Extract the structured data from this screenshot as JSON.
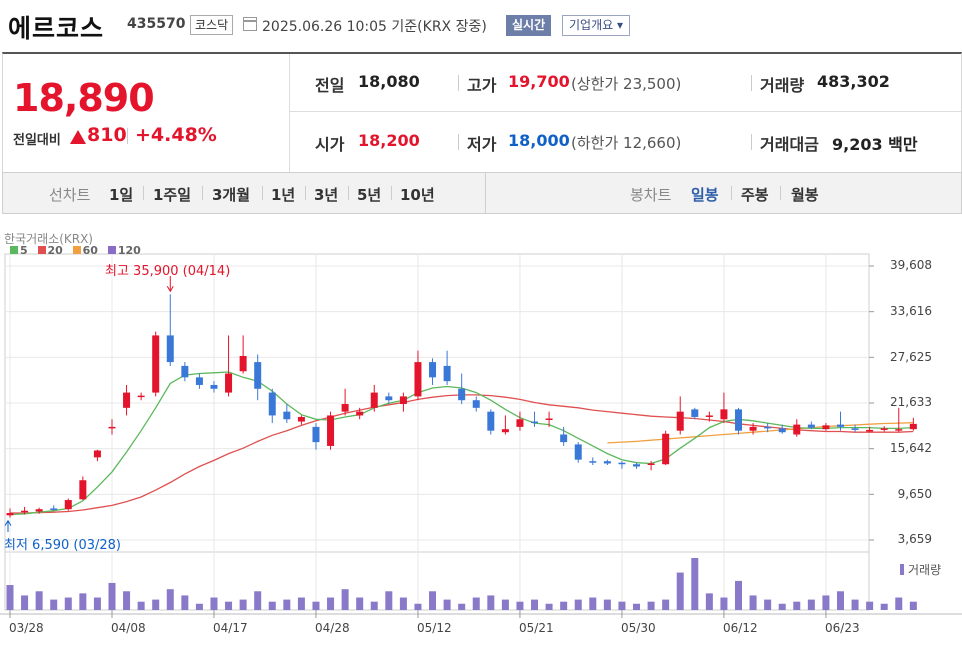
{
  "header": {
    "company_name": "에르코스",
    "ticker": "435570",
    "market": "코스닥",
    "datetime": "2025.06.26 10:05",
    "basis": "기준(KRX 장중)",
    "realtime_button": "실시간",
    "company_overview_button": "기업개요 ▾"
  },
  "quote": {
    "current_price": "18,890",
    "change_label": "전일대비",
    "change_value": "810",
    "change_pct": "+4.48%",
    "prev_close_label": "전일",
    "prev_close": "18,080",
    "open_label": "시가",
    "open": "18,200",
    "high_label": "고가",
    "high": "19,700",
    "upper_limit_text": "(상한가 23,500)",
    "low_label": "저가",
    "low": "18,000",
    "lower_limit_text": "(하한가 12,660)",
    "volume_label": "거래량",
    "volume": "483,302",
    "amount_label": "거래대금",
    "amount": "9,203 백만",
    "colors": {
      "up": "#e3142b",
      "down": "#1060c8"
    }
  },
  "period_bar": {
    "line_chart_label": "선차트",
    "line_periods": [
      "1일",
      "1주일",
      "3개월",
      "1년",
      "3년",
      "5년",
      "10년"
    ],
    "candle_chart_label": "봉차트",
    "candle_periods": [
      "일봉",
      "주봉",
      "월봉"
    ],
    "active_candle_period": "일봉"
  },
  "chart_data": {
    "type": "candlestick",
    "source_label": "한국거래소(KRX)",
    "moving_averages": [
      {
        "name": "5",
        "color": "#5cb85c"
      },
      {
        "name": "20",
        "color": "#e05050"
      },
      {
        "name": "60",
        "color": "#f0a040"
      },
      {
        "name": "120",
        "color": "#8a6cc8"
      }
    ],
    "y_ticks": [
      "39,608",
      "33,616",
      "27,625",
      "21,633",
      "15,642",
      "9,650",
      "3,659"
    ],
    "y_tick_values": [
      39608,
      33616,
      27625,
      21633,
      15642,
      9650,
      3659
    ],
    "x_ticks": [
      "03/28",
      "04/08",
      "04/17",
      "04/28",
      "05/12",
      "05/21",
      "05/30",
      "06/12",
      "06/23"
    ],
    "x_tick_indices": [
      0,
      7,
      14,
      21,
      28,
      35,
      42,
      49,
      56
    ],
    "high_annotation": "최고 35,900 (04/14)",
    "low_annotation": "최저 6,590 (03/28)",
    "volume_label": "거래량",
    "candles": [
      {
        "o": 6900,
        "h": 7800,
        "l": 6590,
        "c": 7200
      },
      {
        "o": 7300,
        "h": 8000,
        "l": 7000,
        "c": 7500
      },
      {
        "o": 7400,
        "h": 7900,
        "l": 7100,
        "c": 7700
      },
      {
        "o": 7800,
        "h": 8200,
        "l": 7500,
        "c": 7600
      },
      {
        "o": 7700,
        "h": 9100,
        "l": 7500,
        "c": 8900
      },
      {
        "o": 9000,
        "h": 12000,
        "l": 8900,
        "c": 11500
      },
      {
        "o": 14500,
        "h": 15500,
        "l": 14000,
        "c": 15400
      },
      {
        "o": 18500,
        "h": 19500,
        "l": 17500,
        "c": 18500
      },
      {
        "o": 21000,
        "h": 24000,
        "l": 20000,
        "c": 23000
      },
      {
        "o": 22500,
        "h": 23000,
        "l": 22000,
        "c": 22600
      },
      {
        "o": 23000,
        "h": 31000,
        "l": 22500,
        "c": 30500
      },
      {
        "o": 30500,
        "h": 35900,
        "l": 26500,
        "c": 27000
      },
      {
        "o": 26500,
        "h": 27000,
        "l": 24500,
        "c": 25000
      },
      {
        "o": 25000,
        "h": 25500,
        "l": 23500,
        "c": 24000
      },
      {
        "o": 24000,
        "h": 24500,
        "l": 23000,
        "c": 23500
      },
      {
        "o": 23000,
        "h": 30500,
        "l": 22500,
        "c": 25500
      },
      {
        "o": 25800,
        "h": 30500,
        "l": 25500,
        "c": 27800
      },
      {
        "o": 27000,
        "h": 28000,
        "l": 22000,
        "c": 23500
      },
      {
        "o": 23000,
        "h": 23500,
        "l": 19000,
        "c": 20000
      },
      {
        "o": 20500,
        "h": 21500,
        "l": 19000,
        "c": 19500
      },
      {
        "o": 19200,
        "h": 20000,
        "l": 18800,
        "c": 19800
      },
      {
        "o": 18500,
        "h": 19000,
        "l": 15500,
        "c": 16500
      },
      {
        "o": 16000,
        "h": 20500,
        "l": 15500,
        "c": 20000
      },
      {
        "o": 20500,
        "h": 23500,
        "l": 20000,
        "c": 21500
      },
      {
        "o": 20000,
        "h": 21000,
        "l": 19500,
        "c": 20500
      },
      {
        "o": 21000,
        "h": 24000,
        "l": 20500,
        "c": 23000
      },
      {
        "o": 22500,
        "h": 23000,
        "l": 21500,
        "c": 22000
      },
      {
        "o": 21500,
        "h": 23000,
        "l": 20500,
        "c": 22500
      },
      {
        "o": 22500,
        "h": 28500,
        "l": 22000,
        "c": 27000
      },
      {
        "o": 27000,
        "h": 27500,
        "l": 24000,
        "c": 25000
      },
      {
        "o": 26500,
        "h": 28500,
        "l": 24000,
        "c": 24500
      },
      {
        "o": 23500,
        "h": 25500,
        "l": 21500,
        "c": 22000
      },
      {
        "o": 22000,
        "h": 22500,
        "l": 20500,
        "c": 21000
      },
      {
        "o": 20500,
        "h": 20800,
        "l": 17500,
        "c": 18000
      },
      {
        "o": 17800,
        "h": 20000,
        "l": 17500,
        "c": 18200
      },
      {
        "o": 18500,
        "h": 20500,
        "l": 18000,
        "c": 19500
      },
      {
        "o": 19200,
        "h": 20500,
        "l": 18500,
        "c": 19000
      },
      {
        "o": 19500,
        "h": 20500,
        "l": 18500,
        "c": 19600
      },
      {
        "o": 17500,
        "h": 18500,
        "l": 16000,
        "c": 16500
      },
      {
        "o": 16200,
        "h": 16500,
        "l": 13800,
        "c": 14200
      },
      {
        "o": 14000,
        "h": 14500,
        "l": 13500,
        "c": 13800
      },
      {
        "o": 14000,
        "h": 14200,
        "l": 13500,
        "c": 13700
      },
      {
        "o": 13800,
        "h": 14000,
        "l": 13000,
        "c": 13600
      },
      {
        "o": 13600,
        "h": 13800,
        "l": 13000,
        "c": 13300
      },
      {
        "o": 13500,
        "h": 14000,
        "l": 12800,
        "c": 13700
      },
      {
        "o": 13600,
        "h": 18000,
        "l": 13500,
        "c": 17600
      },
      {
        "o": 18000,
        "h": 22500,
        "l": 17500,
        "c": 20500
      },
      {
        "o": 20800,
        "h": 21000,
        "l": 19500,
        "c": 19800
      },
      {
        "o": 19800,
        "h": 20500,
        "l": 19200,
        "c": 20000
      },
      {
        "o": 19500,
        "h": 23000,
        "l": 19000,
        "c": 20800
      },
      {
        "o": 20800,
        "h": 21000,
        "l": 17500,
        "c": 18000
      },
      {
        "o": 18000,
        "h": 19000,
        "l": 17500,
        "c": 18500
      },
      {
        "o": 18500,
        "h": 19000,
        "l": 17800,
        "c": 18300
      },
      {
        "o": 18300,
        "h": 18800,
        "l": 17600,
        "c": 17800
      },
      {
        "o": 17500,
        "h": 19500,
        "l": 17200,
        "c": 18800
      },
      {
        "o": 18800,
        "h": 19200,
        "l": 18200,
        "c": 18400
      },
      {
        "o": 18200,
        "h": 19000,
        "l": 18000,
        "c": 18700
      },
      {
        "o": 18800,
        "h": 20500,
        "l": 18000,
        "c": 18500
      },
      {
        "o": 18300,
        "h": 18800,
        "l": 17800,
        "c": 18200
      },
      {
        "o": 18000,
        "h": 18500,
        "l": 17800,
        "c": 18100
      },
      {
        "o": 18200,
        "h": 18600,
        "l": 17900,
        "c": 18300
      },
      {
        "o": 18100,
        "h": 21000,
        "l": 17800,
        "c": 18200
      },
      {
        "o": 18200,
        "h": 19700,
        "l": 18000,
        "c": 18890
      }
    ],
    "ma5": [
      7000,
      7100,
      7300,
      7500,
      7800,
      8800,
      10600,
      12600,
      15200,
      18000,
      21000,
      24200,
      25300,
      25500,
      25600,
      25700,
      25000,
      24500,
      23200,
      21500,
      20100,
      19500,
      19400,
      19800,
      20100,
      21000,
      21600,
      22000,
      23000,
      23600,
      23800,
      23600,
      23000,
      22000,
      20800,
      19700,
      19000,
      18800,
      18000,
      17000,
      16000,
      15000,
      14200,
      13800,
      13700,
      14300,
      15700,
      17000,
      18400,
      19200,
      19500,
      19300,
      19000,
      18700,
      18400,
      18300,
      18300,
      18400,
      18400,
      18400,
      18300,
      18300,
      18400
    ],
    "ma20": [
      7200,
      7200,
      7250,
      7300,
      7400,
      7600,
      7900,
      8200,
      8700,
      9300,
      10200,
      11200,
      12300,
      13300,
      14100,
      15000,
      15700,
      16600,
      17400,
      18000,
      18700,
      19300,
      19800,
      20300,
      20700,
      21100,
      21400,
      21700,
      22100,
      22400,
      22600,
      22700,
      22700,
      22600,
      22400,
      22100,
      21700,
      21400,
      21200,
      21000,
      20700,
      20500,
      20300,
      20100,
      19900,
      19800,
      19700,
      19600,
      19400,
      19200,
      18900,
      18700,
      18500,
      18300,
      18100,
      18000,
      17900,
      17900,
      17800,
      17800,
      17800,
      17800,
      17900
    ],
    "ma60": {
      "start_index": 41,
      "values": [
        16400,
        16500,
        16600,
        16750,
        16900,
        17050,
        17200,
        17350,
        17500,
        17650,
        17800,
        17950,
        18100,
        18250,
        18400,
        18550,
        18650,
        18750,
        18850,
        18950,
        19000,
        19050
      ]
    },
    "volume": [
      12,
      7,
      9,
      5,
      6,
      8,
      6,
      13,
      9,
      4,
      5,
      10,
      7,
      3,
      6,
      4,
      5,
      9,
      4,
      5,
      6,
      4,
      6,
      10,
      6,
      4,
      9,
      6,
      3,
      9,
      5,
      3,
      6,
      7,
      5,
      4,
      5,
      3,
      4,
      5,
      6,
      5,
      4,
      3,
      4,
      5,
      18,
      25,
      8,
      6,
      14,
      7,
      5,
      3,
      4,
      5,
      7,
      9,
      5,
      4,
      3,
      6,
      4
    ]
  }
}
